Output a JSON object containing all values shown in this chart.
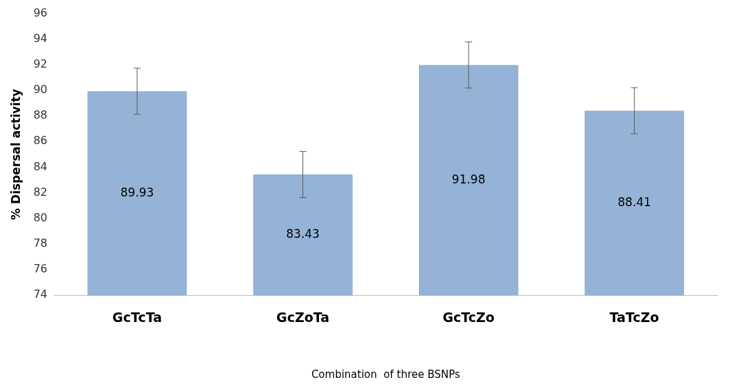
{
  "chart_data": {
    "type": "bar",
    "xlabel": "Combination  of three BSNPs",
    "ylabel": "% Dispersal activity",
    "categories": [
      "GcTcTa",
      "GcZoTa",
      "GcTcZo",
      "TaTcZo"
    ],
    "values": [
      89.93,
      83.43,
      91.98,
      88.41
    ],
    "errors": [
      1.8,
      1.8,
      1.8,
      1.8
    ],
    "color": "#95b3d7",
    "ylim": [
      74,
      96
    ],
    "yticks": [
      74,
      76,
      78,
      80,
      82,
      84,
      86,
      88,
      90,
      92,
      94,
      96
    ],
    "data_labels": true,
    "grid": false,
    "legend": false
  }
}
